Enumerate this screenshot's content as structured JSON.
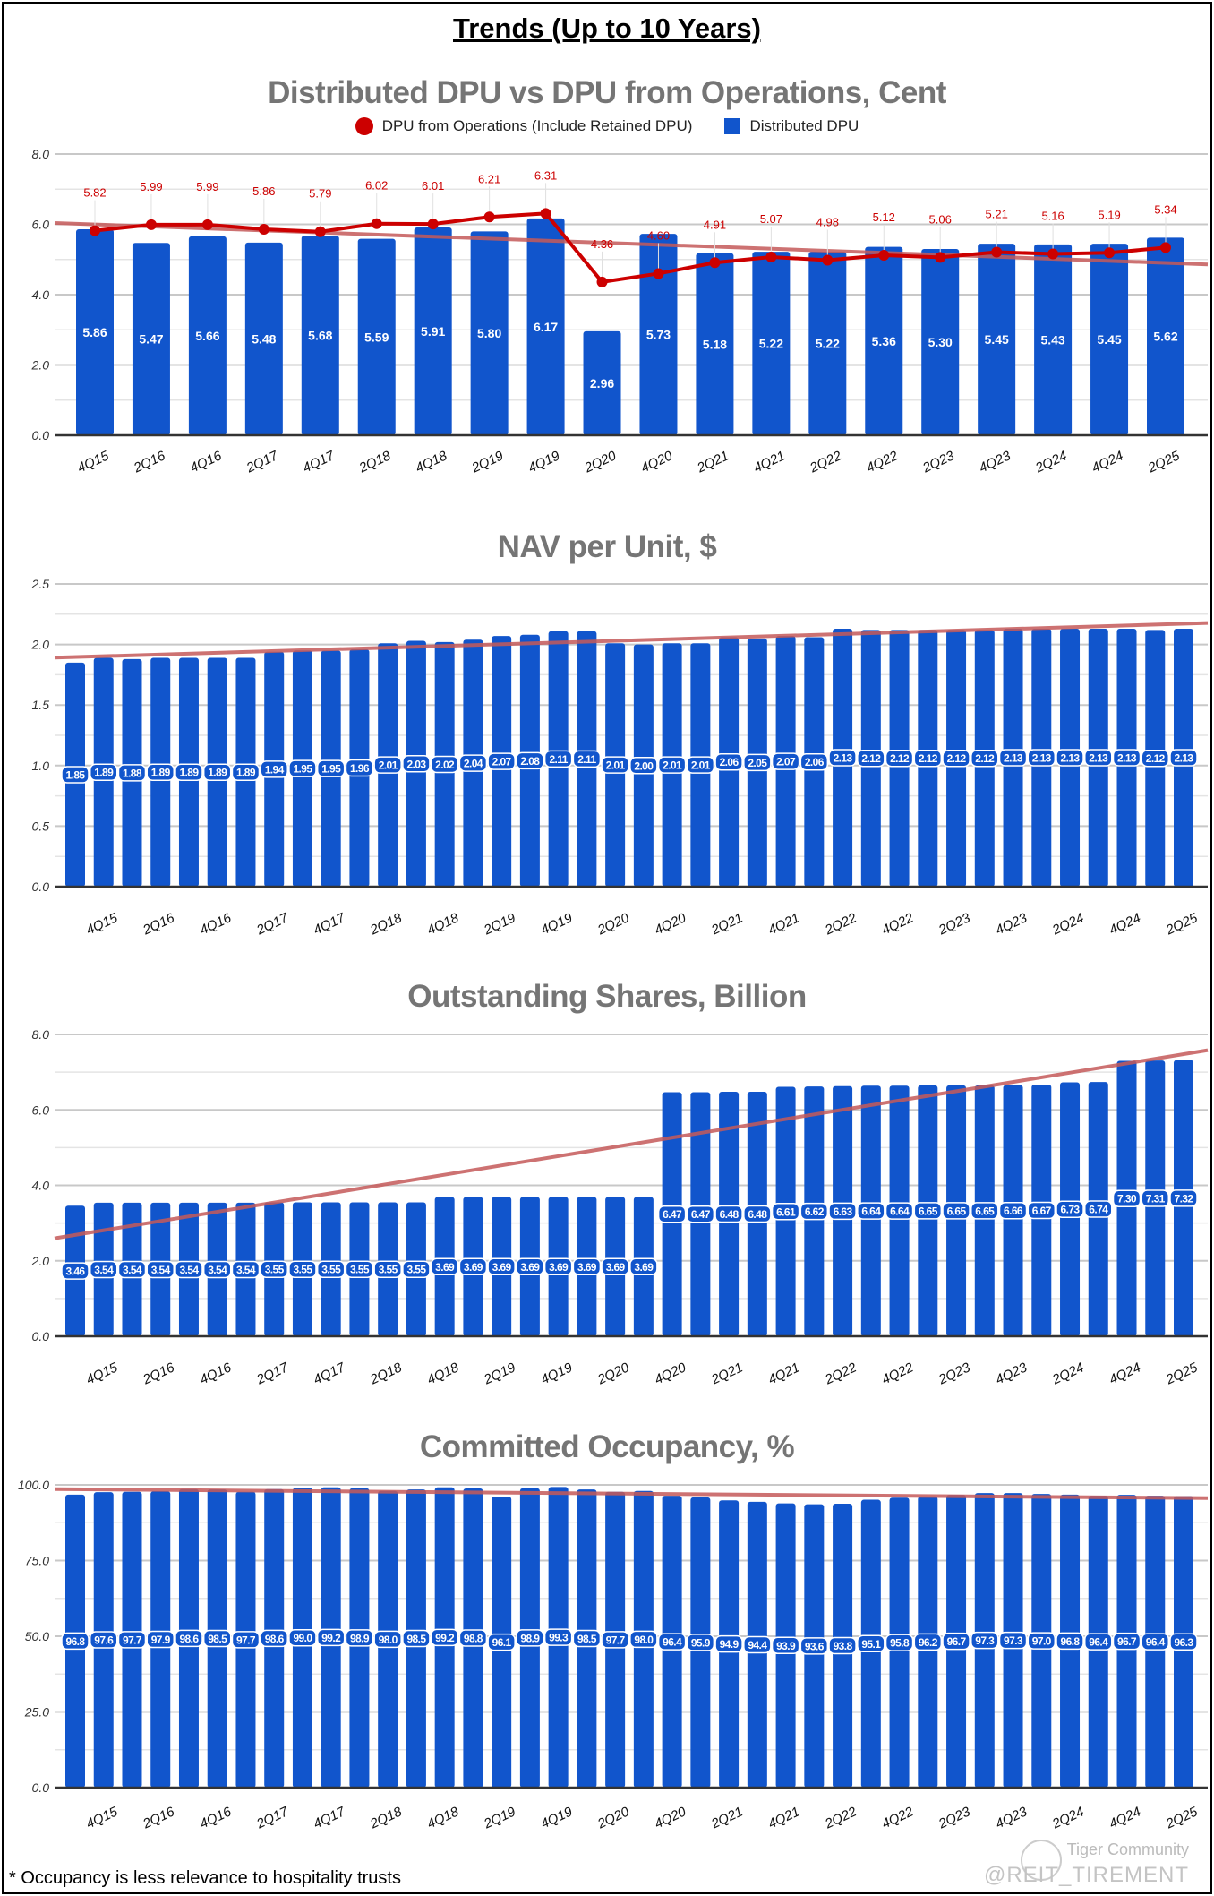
{
  "header": {
    "title": "Trends (Up to 10 Years)"
  },
  "colors": {
    "bar": "#1155cc",
    "line": "#cc0000",
    "trend": "#c55a5a",
    "title": "#757575"
  },
  "footnote": "* Occupancy is less relevance to hospitality trusts",
  "watermark": {
    "brand": "Tiger Community",
    "handle": "@REIT_TIREMENT"
  },
  "chart_data": [
    {
      "type": "bar+line",
      "title": "Distributed DPU vs DPU from Operations, Cent",
      "legend": [
        "DPU from Operations (Include Retained DPU)",
        "Distributed DPU"
      ],
      "legend_position": "top",
      "ylim": [
        0,
        8
      ],
      "y_ticks": [
        "0.0",
        "2.0",
        "4.0",
        "6.0",
        "8.0"
      ],
      "minor_grid_step": 1,
      "tick_labels": [
        "4Q15",
        "2Q16",
        "4Q16",
        "2Q17",
        "4Q17",
        "2Q18",
        "4Q18",
        "2Q19",
        "4Q19",
        "2Q20",
        "4Q20",
        "2Q21",
        "4Q21",
        "2Q22",
        "4Q22",
        "2Q23",
        "4Q23",
        "2Q24",
        "4Q24",
        "2Q25"
      ],
      "tick_every": 1,
      "tick_offset": 0,
      "series": [
        {
          "name": "Distributed DPU",
          "kind": "bar",
          "values": [
            5.86,
            5.47,
            5.66,
            5.48,
            5.68,
            5.59,
            5.91,
            5.8,
            6.17,
            2.96,
            5.73,
            5.18,
            5.22,
            5.22,
            5.36,
            5.3,
            5.45,
            5.43,
            5.45,
            5.62
          ]
        },
        {
          "name": "DPU from Operations (Include Retained DPU)",
          "kind": "line",
          "values": [
            5.82,
            5.99,
            5.99,
            5.86,
            5.79,
            6.02,
            6.01,
            6.21,
            6.31,
            4.36,
            4.6,
            4.91,
            5.07,
            4.98,
            5.12,
            5.06,
            5.21,
            5.16,
            5.19,
            5.34
          ]
        }
      ],
      "trendline_series": 1
    },
    {
      "type": "bar",
      "title": "NAV per Unit, $",
      "ylim": [
        0,
        2.5
      ],
      "y_ticks": [
        "0.0",
        "0.5",
        "1.0",
        "1.5",
        "2.0",
        "2.5"
      ],
      "minor_grid_step": 0.25,
      "tick_labels": [
        "4Q15",
        "2Q16",
        "4Q16",
        "2Q17",
        "4Q17",
        "2Q18",
        "4Q18",
        "2Q19",
        "4Q19",
        "2Q20",
        "4Q20",
        "2Q21",
        "4Q21",
        "2Q22",
        "4Q22",
        "2Q23",
        "4Q23",
        "2Q24",
        "4Q24",
        "2Q25"
      ],
      "tick_every": 2,
      "tick_offset": 1,
      "series": [
        {
          "name": "NAV per Unit",
          "kind": "bar",
          "values": [
            1.85,
            1.89,
            1.88,
            1.89,
            1.89,
            1.89,
            1.89,
            1.94,
            1.95,
            1.95,
            1.96,
            2.01,
            2.03,
            2.02,
            2.04,
            2.07,
            2.08,
            2.11,
            2.11,
            2.01,
            2.0,
            2.01,
            2.01,
            2.06,
            2.05,
            2.07,
            2.06,
            2.13,
            2.12,
            2.12,
            2.12,
            2.12,
            2.12,
            2.13,
            2.13,
            2.13,
            2.13,
            2.13,
            2.12,
            2.13
          ]
        }
      ],
      "trendline_series": 0
    },
    {
      "type": "bar",
      "title": "Outstanding Shares, Billion",
      "ylim": [
        0,
        8
      ],
      "y_ticks": [
        "0.0",
        "2.0",
        "4.0",
        "6.0",
        "8.0"
      ],
      "minor_grid_step": 1,
      "tick_labels": [
        "4Q15",
        "2Q16",
        "4Q16",
        "2Q17",
        "4Q17",
        "2Q18",
        "4Q18",
        "2Q19",
        "4Q19",
        "2Q20",
        "4Q20",
        "2Q21",
        "4Q21",
        "2Q22",
        "4Q22",
        "2Q23",
        "4Q23",
        "2Q24",
        "4Q24",
        "2Q25"
      ],
      "tick_every": 2,
      "tick_offset": 1,
      "series": [
        {
          "name": "Outstanding Shares",
          "kind": "bar",
          "values": [
            3.46,
            3.54,
            3.54,
            3.54,
            3.54,
            3.54,
            3.54,
            3.55,
            3.55,
            3.55,
            3.55,
            3.55,
            3.55,
            3.69,
            3.69,
            3.69,
            3.69,
            3.69,
            3.69,
            3.69,
            3.69,
            6.47,
            6.47,
            6.48,
            6.48,
            6.61,
            6.62,
            6.63,
            6.64,
            6.64,
            6.65,
            6.65,
            6.65,
            6.66,
            6.67,
            6.73,
            6.74,
            7.3,
            7.31,
            7.32
          ]
        }
      ],
      "trendline_series": 0
    },
    {
      "type": "bar",
      "title": "Committed Occupancy, %",
      "ylim": [
        0,
        100
      ],
      "y_ticks": [
        "0.0",
        "25.0",
        "50.0",
        "75.0",
        "100.0"
      ],
      "minor_grid_step": 12.5,
      "tick_labels": [
        "4Q15",
        "2Q16",
        "4Q16",
        "2Q17",
        "4Q17",
        "2Q18",
        "4Q18",
        "2Q19",
        "4Q19",
        "2Q20",
        "4Q20",
        "2Q21",
        "4Q21",
        "2Q22",
        "4Q22",
        "2Q23",
        "4Q23",
        "2Q24",
        "4Q24",
        "2Q25"
      ],
      "tick_every": 2,
      "tick_offset": 1,
      "series": [
        {
          "name": "Committed Occupancy",
          "kind": "bar",
          "values": [
            96.8,
            97.6,
            97.7,
            97.9,
            98.6,
            98.5,
            97.7,
            98.6,
            99.0,
            99.2,
            98.9,
            98.0,
            98.5,
            99.2,
            98.8,
            96.1,
            98.9,
            99.3,
            98.5,
            97.7,
            98.0,
            96.4,
            95.9,
            94.9,
            94.4,
            93.9,
            93.6,
            93.8,
            95.1,
            95.8,
            96.2,
            96.7,
            97.3,
            97.3,
            97.0,
            96.8,
            96.4,
            96.7,
            96.4,
            96.3
          ]
        }
      ],
      "trendline_series": 0
    }
  ]
}
